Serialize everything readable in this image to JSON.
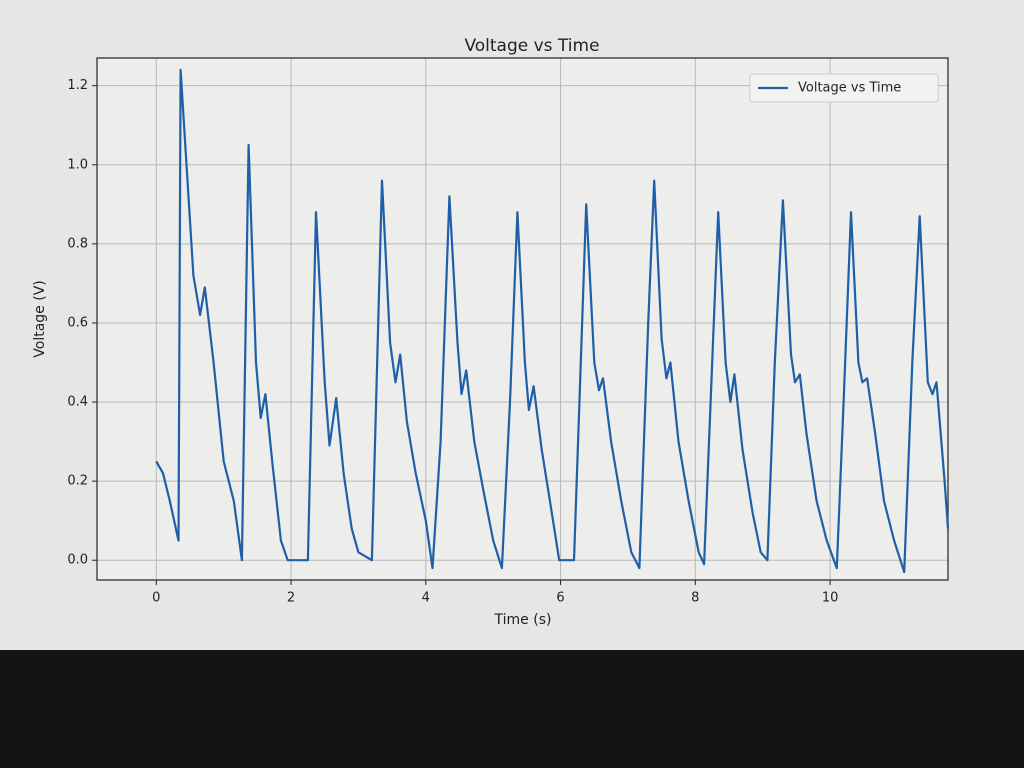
{
  "chart_data": {
    "type": "line",
    "title": "Voltage vs Time",
    "x_label": "Time (s)",
    "y_label": "Voltage (V)",
    "x": [
      0,
      0.1,
      0.2,
      0.33,
      0.36,
      0.55,
      0.65,
      0.72,
      0.85,
      1.0,
      1.15,
      1.27,
      1.37,
      1.48,
      1.55,
      1.62,
      1.72,
      1.85,
      1.95,
      2.25,
      2.37,
      2.5,
      2.57,
      2.67,
      2.78,
      2.9,
      3.0,
      3.2,
      3.35,
      3.47,
      3.55,
      3.62,
      3.72,
      3.85,
      4.0,
      4.1,
      4.22,
      4.35,
      4.47,
      4.53,
      4.6,
      4.72,
      4.85,
      5.0,
      5.13,
      5.25,
      5.36,
      5.47,
      5.53,
      5.6,
      5.72,
      5.87,
      5.98,
      6.2,
      6.38,
      6.5,
      6.57,
      6.63,
      6.75,
      6.9,
      7.05,
      7.17,
      7.3,
      7.39,
      7.5,
      7.57,
      7.63,
      7.75,
      7.9,
      8.05,
      8.13,
      8.25,
      8.34,
      8.45,
      8.52,
      8.58,
      8.7,
      8.85,
      8.97,
      9.07,
      9.18,
      9.3,
      9.42,
      9.48,
      9.55,
      9.65,
      9.8,
      9.95,
      10.1,
      10.2,
      10.31,
      10.42,
      10.48,
      10.55,
      10.67,
      10.8,
      10.95,
      11.1,
      11.22,
      11.33,
      11.45,
      11.52,
      11.58,
      11.7,
      11.75
    ],
    "series": [
      {
        "name": "Voltage vs Time",
        "color": "#1f5fa8",
        "values": [
          0.25,
          0.22,
          0.15,
          0.05,
          1.24,
          0.72,
          0.62,
          0.69,
          0.5,
          0.25,
          0.15,
          0.0,
          1.05,
          0.5,
          0.36,
          0.42,
          0.25,
          0.05,
          0.0,
          0.0,
          0.88,
          0.45,
          0.29,
          0.41,
          0.22,
          0.08,
          0.02,
          0.0,
          0.96,
          0.55,
          0.45,
          0.52,
          0.35,
          0.22,
          0.1,
          -0.02,
          0.3,
          0.92,
          0.55,
          0.42,
          0.48,
          0.3,
          0.18,
          0.05,
          -0.02,
          0.4,
          0.88,
          0.5,
          0.38,
          0.44,
          0.28,
          0.12,
          0.0,
          0.0,
          0.9,
          0.5,
          0.43,
          0.46,
          0.3,
          0.15,
          0.02,
          -0.02,
          0.6,
          0.96,
          0.56,
          0.46,
          0.5,
          0.3,
          0.15,
          0.02,
          -0.01,
          0.5,
          0.88,
          0.5,
          0.4,
          0.47,
          0.28,
          0.12,
          0.02,
          0.0,
          0.5,
          0.91,
          0.52,
          0.45,
          0.47,
          0.32,
          0.15,
          0.05,
          -0.02,
          0.4,
          0.88,
          0.5,
          0.45,
          0.46,
          0.32,
          0.15,
          0.05,
          -0.03,
          0.5,
          0.87,
          0.45,
          0.42,
          0.45,
          0.2,
          0.08
        ]
      }
    ],
    "xlim": [
      -0.88,
      11.75
    ],
    "ylim": [
      -0.05,
      1.27
    ],
    "xticks": [
      0,
      2,
      4,
      6,
      8,
      10
    ],
    "yticks": [
      {
        "value": 0,
        "label": "0.0"
      },
      0.2,
      0.4,
      0.6,
      0.8,
      {
        "value": 1,
        "label": "1.0"
      },
      1.2
    ],
    "grid": true,
    "legend": "upper right"
  }
}
